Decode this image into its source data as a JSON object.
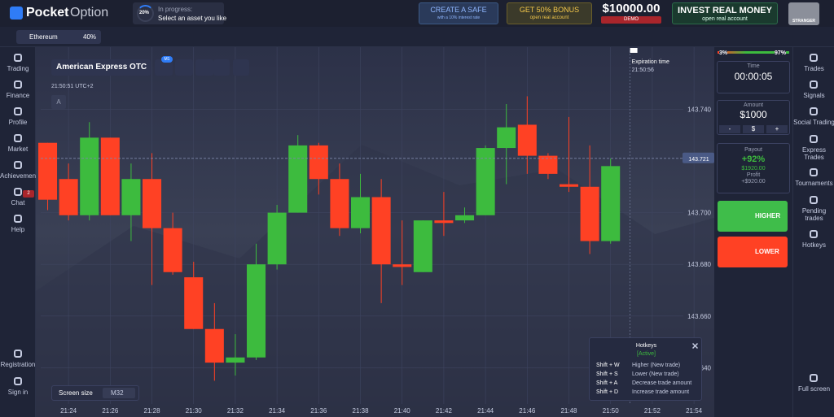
{
  "header": {
    "logo_bold": "Pocket",
    "logo_light": "Option",
    "progress": {
      "percent": "20%",
      "label": "In progress:",
      "text": "Select an asset you like"
    },
    "promo_safe": {
      "title": "CREATE A SAFE",
      "subtitle": "with a 10% interest rate"
    },
    "promo_bonus": {
      "title": "GET 50% BONUS",
      "subtitle": "open real account"
    },
    "balance": {
      "amount": "$10000.00",
      "mode": "DEMO"
    },
    "invest": {
      "title": "INVEST REAL MONEY",
      "subtitle": "open real account"
    },
    "user": "STRANGER"
  },
  "tabs": [
    {
      "asset": "Ethereum",
      "payout": "40%"
    }
  ],
  "left_nav": [
    "Trading",
    "Finance",
    "Profile",
    "Market",
    "Achievements",
    "Chat",
    "Help"
  ],
  "chat_badge": "2",
  "left_nav_bottom": [
    "Registration",
    "Sign in"
  ],
  "toolbar": {
    "asset": "American Express OTC",
    "timeframe": "M1",
    "clock": "21:50:51 UTC+2",
    "label_button": "A"
  },
  "chart_data": {
    "type": "candlestick",
    "up_color": "#3dbb3e",
    "down_color": "#ff4124",
    "x": [
      "21:23",
      "21:24",
      "21:25",
      "21:26",
      "21:27",
      "21:28",
      "21:29",
      "21:30",
      "21:31",
      "21:32",
      "21:33",
      "21:34",
      "21:35",
      "21:36",
      "21:37",
      "21:38",
      "21:39",
      "21:40",
      "21:41",
      "21:42",
      "21:43",
      "21:44",
      "21:45",
      "21:46",
      "21:47",
      "21:48",
      "21:49",
      "21:50"
    ],
    "open": [
      143.727,
      143.713,
      143.699,
      143.729,
      143.699,
      143.713,
      143.694,
      143.675,
      143.655,
      143.642,
      143.644,
      143.68,
      143.7,
      143.726,
      143.713,
      143.694,
      143.706,
      143.68,
      143.677,
      143.697,
      143.697,
      143.699,
      143.725,
      143.734,
      143.722,
      143.711,
      143.71,
      143.689
    ],
    "high": [
      143.727,
      143.719,
      143.735,
      143.729,
      143.719,
      143.723,
      143.7,
      143.681,
      143.665,
      143.653,
      143.688,
      143.703,
      143.73,
      143.727,
      143.719,
      143.715,
      143.713,
      143.697,
      143.697,
      143.708,
      143.702,
      143.726,
      143.742,
      143.745,
      143.723,
      143.737,
      143.726,
      143.721
    ],
    "low": [
      143.701,
      143.697,
      143.697,
      143.699,
      143.689,
      143.672,
      143.676,
      143.655,
      143.635,
      143.637,
      143.643,
      143.678,
      143.7,
      143.707,
      143.691,
      143.692,
      143.665,
      143.672,
      143.677,
      143.691,
      143.696,
      143.699,
      143.711,
      143.715,
      143.713,
      143.708,
      143.684,
      143.688
    ],
    "close": [
      143.705,
      143.699,
      143.729,
      143.699,
      143.713,
      143.694,
      143.677,
      143.655,
      143.642,
      143.644,
      143.68,
      143.7,
      143.726,
      143.713,
      143.694,
      143.706,
      143.68,
      143.679,
      143.697,
      143.696,
      143.699,
      143.725,
      143.733,
      143.722,
      143.715,
      143.71,
      143.689,
      143.718
    ],
    "xlim": [
      "21:22:40",
      "21:54:56"
    ],
    "xticks": [
      "21:24",
      "21:26",
      "21:28",
      "21:30",
      "21:32",
      "21:34",
      "21:36",
      "21:38",
      "21:40",
      "21:42",
      "21:44",
      "21:46",
      "21:48",
      "21:50",
      "21:52",
      "21:54"
    ],
    "ylim": [
      143.626,
      143.764
    ],
    "yticks": [
      {
        "value": 143.74,
        "label": "143.740"
      },
      {
        "value": 143.7,
        "label": "143.700"
      },
      {
        "value": 143.68,
        "label": "143.680"
      },
      {
        "value": 143.66,
        "label": "143.660"
      },
      {
        "value": 143.64,
        "label": "143.640"
      }
    ],
    "grid": true,
    "current_price": {
      "value": 143.721,
      "label": "143.721"
    },
    "expiration": {
      "label": "Expiration time",
      "time": "21:50:56"
    }
  },
  "screen_size": {
    "label": "Screen size",
    "value": "M32"
  },
  "hotkeys": {
    "title": "Hotkeys",
    "status": "[Active]",
    "rows": [
      [
        "Shift + W",
        "Higher (New trade)"
      ],
      [
        "Shift + S",
        "Lower (New trade)"
      ],
      [
        "Shift + A",
        "Decrease trade amount"
      ],
      [
        "Shift + D",
        "Increase trade amount"
      ]
    ]
  },
  "trade_panel": {
    "sentiment_low": "3%",
    "sentiment_high": "97%",
    "time_label": "Time",
    "time": "00:00:05",
    "amount_label": "Amount",
    "amount": "$1000",
    "minus": "-",
    "currency": "$",
    "plus": "+",
    "payout_label": "Payout",
    "payout": "+92%",
    "payout_amount": "$1920.00",
    "profit_label": "Profit",
    "profit": "+$920.00",
    "higher": "HIGHER",
    "lower": "LOWER"
  },
  "right_nav": [
    "Trades",
    "Signals",
    "Social Trading",
    "Express Trades",
    "Tournaments",
    "Pending trades",
    "Hotkeys"
  ],
  "full_screen": "Full screen"
}
